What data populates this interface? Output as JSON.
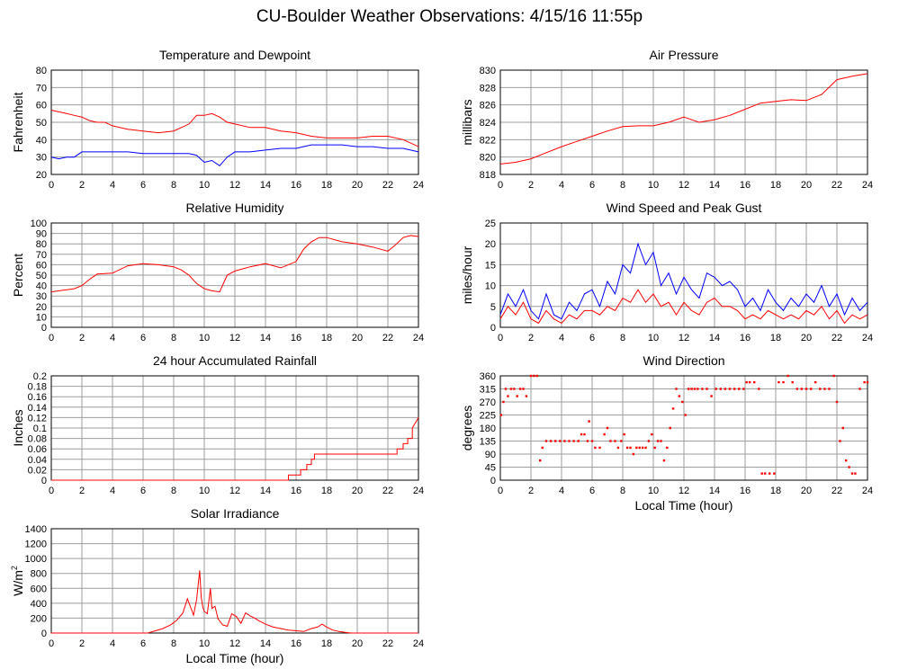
{
  "title": "CU-Boulder Weather Observations: 4/15/16 11:55p",
  "colors": {
    "red": "#ff0000",
    "blue": "#0000ff",
    "grid": "#9e9e9e",
    "frame": "#000000"
  },
  "chart_data": [
    {
      "id": "temp",
      "type": "line",
      "title": "Temperature and Dewpoint",
      "ylabel": "Fahrenheit",
      "xlabel": "",
      "xlim": [
        0,
        24
      ],
      "ylim": [
        20,
        80
      ],
      "xticks": [
        0,
        2,
        4,
        6,
        8,
        10,
        12,
        14,
        16,
        18,
        20,
        22,
        24
      ],
      "yticks": [
        20,
        30,
        40,
        50,
        60,
        70,
        80
      ],
      "series": [
        {
          "color": "#ff0000",
          "x": [
            0,
            0.5,
            1,
            1.5,
            2,
            2.5,
            3,
            3.5,
            4,
            5,
            6,
            7,
            8,
            8.5,
            9,
            9.5,
            10,
            10.5,
            11,
            11.5,
            12,
            13,
            14,
            15,
            16,
            17,
            18,
            19,
            20,
            21,
            22,
            23,
            24
          ],
          "y": [
            57,
            56,
            55,
            54,
            53,
            51,
            50,
            50,
            48,
            46,
            45,
            44,
            45,
            47,
            49,
            54,
            54,
            55,
            53,
            50,
            49,
            47,
            47,
            45,
            44,
            42,
            41,
            41,
            41,
            42,
            42,
            40,
            36
          ]
        },
        {
          "color": "#0000ff",
          "x": [
            0,
            0.5,
            1,
            1.5,
            2,
            3,
            4,
            5,
            6,
            7,
            8,
            9,
            9.5,
            10,
            10.5,
            11,
            11.5,
            12,
            13,
            14,
            15,
            16,
            17,
            18,
            19,
            20,
            21,
            22,
            23,
            24
          ],
          "y": [
            30,
            29,
            30,
            30,
            33,
            33,
            33,
            33,
            32,
            32,
            32,
            32,
            31,
            27,
            28,
            25,
            30,
            33,
            33,
            34,
            35,
            35,
            37,
            37,
            37,
            36,
            36,
            35,
            35,
            33
          ]
        }
      ]
    },
    {
      "id": "pressure",
      "type": "line",
      "title": "Air Pressure",
      "ylabel": "millibars",
      "xlabel": "",
      "xlim": [
        0,
        24
      ],
      "ylim": [
        818,
        830
      ],
      "xticks": [
        0,
        2,
        4,
        6,
        8,
        10,
        12,
        14,
        16,
        18,
        20,
        22,
        24
      ],
      "yticks": [
        818,
        820,
        822,
        824,
        826,
        828,
        830
      ],
      "series": [
        {
          "color": "#ff0000",
          "x": [
            0,
            1,
            2,
            3,
            4,
            5,
            6,
            7,
            8,
            9,
            10,
            11,
            12,
            13,
            14,
            15,
            16,
            17,
            18,
            19,
            20,
            21,
            22,
            23,
            24
          ],
          "y": [
            819.2,
            819.4,
            819.8,
            820.5,
            821.2,
            821.8,
            822.4,
            823.0,
            823.5,
            823.6,
            823.6,
            824.0,
            824.6,
            824.0,
            824.3,
            824.8,
            825.5,
            826.2,
            826.4,
            826.6,
            826.5,
            827.2,
            828.9,
            829.3,
            829.6
          ]
        }
      ]
    },
    {
      "id": "humidity",
      "type": "line",
      "title": "Relative Humidity",
      "ylabel": "Percent",
      "xlabel": "",
      "xlim": [
        0,
        24
      ],
      "ylim": [
        0,
        100
      ],
      "xticks": [
        0,
        2,
        4,
        6,
        8,
        10,
        12,
        14,
        16,
        18,
        20,
        22,
        24
      ],
      "yticks": [
        0,
        10,
        20,
        30,
        40,
        50,
        60,
        70,
        80,
        90,
        100
      ],
      "series": [
        {
          "color": "#ff0000",
          "x": [
            0,
            0.5,
            1,
            1.5,
            2,
            2.5,
            3,
            4,
            5,
            6,
            7,
            8,
            8.5,
            9,
            9.5,
            10,
            10.5,
            11,
            11.5,
            12,
            13,
            14,
            15,
            16,
            16.5,
            17,
            17.5,
            18,
            19,
            20,
            21,
            22,
            22.5,
            23,
            23.5,
            24
          ],
          "y": [
            34,
            35,
            36,
            37,
            40,
            46,
            51,
            52,
            59,
            61,
            60,
            58,
            55,
            50,
            42,
            37,
            35,
            34,
            50,
            54,
            58,
            61,
            57,
            63,
            75,
            82,
            86,
            86,
            82,
            80,
            77,
            73,
            79,
            86,
            88,
            87
          ]
        }
      ]
    },
    {
      "id": "wind",
      "type": "line",
      "title": "Wind Speed and Peak Gust",
      "ylabel": "miles/hour",
      "xlabel": "",
      "xlim": [
        0,
        24
      ],
      "ylim": [
        0,
        25
      ],
      "xticks": [
        0,
        2,
        4,
        6,
        8,
        10,
        12,
        14,
        16,
        18,
        20,
        22,
        24
      ],
      "yticks": [
        0,
        5,
        10,
        15,
        20,
        25
      ],
      "series": [
        {
          "color": "#0000ff",
          "x": [
            0,
            0.5,
            1,
            1.5,
            2,
            2.5,
            3,
            3.5,
            4,
            4.5,
            5,
            5.5,
            6,
            6.5,
            7,
            7.5,
            8,
            8.5,
            9,
            9.5,
            10,
            10.5,
            11,
            11.5,
            12,
            12.5,
            13,
            13.5,
            14,
            14.5,
            15,
            15.5,
            16,
            16.5,
            17,
            17.5,
            18,
            18.5,
            19,
            19.5,
            20,
            20.5,
            21,
            21.5,
            22,
            22.5,
            23,
            23.5,
            24
          ],
          "y": [
            3,
            8,
            5,
            9,
            4,
            2,
            8,
            3,
            2,
            6,
            4,
            8,
            9,
            5,
            11,
            8,
            15,
            13,
            20,
            15,
            18,
            10,
            13,
            8,
            12,
            9,
            7,
            13,
            12,
            10,
            11,
            9,
            5,
            7,
            4,
            9,
            6,
            4,
            7,
            5,
            8,
            6,
            10,
            5,
            8,
            3,
            7,
            4,
            6
          ]
        },
        {
          "color": "#ff0000",
          "x": [
            0,
            0.5,
            1,
            1.5,
            2,
            2.5,
            3,
            3.5,
            4,
            4.5,
            5,
            5.5,
            6,
            6.5,
            7,
            7.5,
            8,
            8.5,
            9,
            9.5,
            10,
            10.5,
            11,
            11.5,
            12,
            12.5,
            13,
            13.5,
            14,
            14.5,
            15,
            15.5,
            16,
            16.5,
            17,
            17.5,
            18,
            18.5,
            19,
            19.5,
            20,
            20.5,
            21,
            21.5,
            22,
            22.5,
            23,
            23.5,
            24
          ],
          "y": [
            2,
            5,
            3,
            6,
            2,
            1,
            4,
            2,
            1,
            3,
            2,
            4,
            4,
            3,
            5,
            4,
            7,
            6,
            9,
            6,
            8,
            5,
            6,
            3,
            6,
            4,
            3,
            6,
            7,
            5,
            5,
            4,
            2,
            3,
            2,
            4,
            3,
            2,
            3,
            2,
            4,
            3,
            5,
            2,
            4,
            1,
            3,
            2,
            3
          ]
        }
      ]
    },
    {
      "id": "rain",
      "type": "line",
      "title": "24 hour Accumulated Rainfall",
      "ylabel": "Inches",
      "xlabel": "",
      "xlim": [
        0,
        24
      ],
      "ylim": [
        0,
        0.2
      ],
      "xticks": [
        0,
        2,
        4,
        6,
        8,
        10,
        12,
        14,
        16,
        18,
        20,
        22,
        24
      ],
      "yticks": [
        0.0,
        0.02,
        0.04,
        0.06,
        0.08,
        0.1,
        0.12,
        0.14,
        0.16,
        0.18,
        0.2
      ],
      "series": [
        {
          "color": "#ff0000",
          "x": [
            0,
            15.5,
            15.5,
            16.3,
            16.3,
            16.7,
            16.7,
            17.0,
            17.0,
            17.2,
            17.2,
            22.6,
            22.6,
            23.0,
            23.0,
            23.3,
            23.3,
            23.6,
            23.6,
            24.0
          ],
          "y": [
            0,
            0,
            0.01,
            0.01,
            0.02,
            0.02,
            0.03,
            0.03,
            0.04,
            0.04,
            0.05,
            0.05,
            0.06,
            0.06,
            0.07,
            0.07,
            0.08,
            0.08,
            0.1,
            0.12
          ]
        }
      ]
    },
    {
      "id": "direction",
      "type": "scatter",
      "title": "Wind Direction",
      "ylabel": "degrees",
      "xlabel": "Local Time (hour)",
      "xlim": [
        0,
        24
      ],
      "ylim": [
        0,
        360
      ],
      "xticks": [
        0,
        2,
        4,
        6,
        8,
        10,
        12,
        14,
        16,
        18,
        20,
        22,
        24
      ],
      "yticks": [
        0,
        45,
        90,
        135,
        180,
        225,
        270,
        315,
        360
      ],
      "series": [
        {
          "color": "#ff0000",
          "x": [
            0.05,
            0.2,
            0.35,
            0.5,
            0.7,
            0.9,
            1.1,
            1.3,
            1.5,
            1.7,
            2.0,
            2.2,
            2.4,
            2.6,
            2.75,
            3.0,
            3.3,
            3.6,
            3.9,
            4.2,
            4.5,
            4.8,
            5.1,
            5.3,
            5.5,
            5.7,
            5.8,
            6.0,
            6.2,
            6.5,
            6.8,
            7.0,
            7.2,
            7.5,
            7.7,
            7.9,
            8.1,
            8.3,
            8.5,
            8.7,
            8.9,
            9.1,
            9.3,
            9.5,
            9.7,
            9.9,
            10.1,
            10.3,
            10.5,
            10.7,
            10.9,
            11.1,
            11.3,
            11.5,
            11.7,
            11.9,
            12.1,
            12.3,
            12.5,
            12.7,
            12.9,
            13.2,
            13.5,
            13.8,
            14.1,
            14.4,
            14.7,
            15.0,
            15.3,
            15.6,
            15.9,
            16.1,
            16.3,
            16.6,
            16.9,
            17.1,
            17.3,
            17.6,
            17.9,
            18.2,
            18.5,
            18.8,
            19.1,
            19.4,
            19.7,
            20.0,
            20.3,
            20.6,
            20.9,
            21.2,
            21.5,
            21.8,
            22.0,
            22.2,
            22.4,
            22.6,
            22.8,
            23.0,
            23.2,
            23.5,
            23.8,
            24.0
          ],
          "y": [
            225,
            270,
            315,
            290,
            315,
            315,
            290,
            315,
            315,
            290,
            360,
            360,
            360,
            68,
            112,
            135,
            135,
            135,
            135,
            135,
            135,
            135,
            135,
            158,
            158,
            135,
            203,
            135,
            112,
            112,
            158,
            180,
            135,
            135,
            112,
            135,
            158,
            112,
            112,
            90,
            112,
            112,
            112,
            112,
            135,
            158,
            112,
            135,
            135,
            68,
            112,
            180,
            247,
            315,
            290,
            270,
            225,
            315,
            315,
            315,
            315,
            315,
            315,
            290,
            315,
            315,
            315,
            315,
            315,
            315,
            315,
            338,
            338,
            338,
            315,
            23,
            23,
            23,
            23,
            338,
            338,
            360,
            338,
            315,
            315,
            315,
            315,
            338,
            315,
            315,
            315,
            360,
            270,
            135,
            180,
            68,
            45,
            23,
            23,
            315,
            338,
            338
          ]
        }
      ]
    },
    {
      "id": "solar",
      "type": "line",
      "title": "Solar Irradiance",
      "ylabel": "W/m",
      "ylabel_sup": "2",
      "xlabel": "Local Time (hour)",
      "xlim": [
        0,
        24
      ],
      "ylim": [
        0,
        1400
      ],
      "xticks": [
        0,
        2,
        4,
        6,
        8,
        10,
        12,
        14,
        16,
        18,
        20,
        22,
        24
      ],
      "yticks": [
        0,
        200,
        400,
        600,
        800,
        1000,
        1200,
        1400
      ],
      "series": [
        {
          "color": "#ff0000",
          "x": [
            0,
            6.3,
            6.8,
            7.3,
            7.8,
            8.2,
            8.6,
            8.9,
            9.1,
            9.3,
            9.5,
            9.7,
            9.8,
            9.9,
            10.0,
            10.2,
            10.4,
            10.5,
            10.7,
            10.9,
            11.2,
            11.5,
            11.8,
            12.1,
            12.4,
            12.7,
            13.0,
            13.3,
            13.6,
            14.0,
            14.5,
            15.0,
            15.5,
            16.0,
            16.5,
            17.0,
            17.4,
            17.7,
            18.0,
            18.4,
            18.8,
            19.2,
            19.6,
            24
          ],
          "y": [
            0,
            0,
            30,
            60,
            110,
            170,
            270,
            460,
            350,
            240,
            450,
            840,
            480,
            350,
            290,
            260,
            600,
            330,
            360,
            190,
            110,
            90,
            260,
            220,
            130,
            270,
            230,
            200,
            160,
            120,
            80,
            60,
            40,
            30,
            20,
            60,
            80,
            120,
            80,
            40,
            20,
            10,
            0,
            0
          ]
        }
      ]
    }
  ]
}
